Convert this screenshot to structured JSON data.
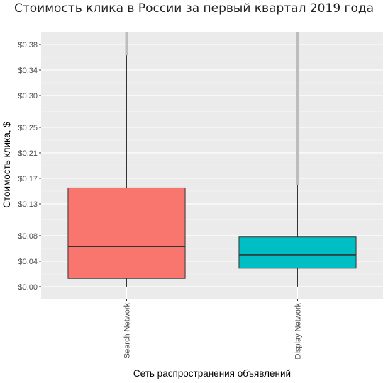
{
  "chart_data": {
    "type": "boxplot",
    "title": "Стоимость клика в России за первый квартал 2019 года",
    "xlabel": "Сеть распространения объявлений",
    "ylabel": "Стоимость клика, $",
    "ylim": [
      -0.019,
      0.4
    ],
    "y_ticks": [
      {
        "value": 0.0,
        "label": "$0.00"
      },
      {
        "value": 0.04,
        "label": "$0.04"
      },
      {
        "value": 0.08,
        "label": "$0.08"
      },
      {
        "value": 0.13,
        "label": "$0.13"
      },
      {
        "value": 0.17,
        "label": "$0.17"
      },
      {
        "value": 0.21,
        "label": "$0.21"
      },
      {
        "value": 0.25,
        "label": "$0.25"
      },
      {
        "value": 0.3,
        "label": "$0.30"
      },
      {
        "value": 0.34,
        "label": "$0.34"
      },
      {
        "value": 0.38,
        "label": "$0.38"
      }
    ],
    "grid": true,
    "legend": "none",
    "categories": [
      "Search Network",
      "Display Network"
    ],
    "boxes": [
      {
        "category": "Search Network",
        "color": "#f8766d",
        "whisker_low": 0.0,
        "q1": 0.013,
        "median": 0.063,
        "q3": 0.155,
        "whisker_high": 0.363,
        "outliers_from": 0.363,
        "outliers_to": 0.4
      },
      {
        "category": "Display Network",
        "color": "#00bfc4",
        "whisker_low": 0.0,
        "q1": 0.029,
        "median": 0.05,
        "q3": 0.078,
        "whisker_high": 0.16,
        "outliers_from": 0.16,
        "outliers_to": 0.4
      }
    ]
  }
}
